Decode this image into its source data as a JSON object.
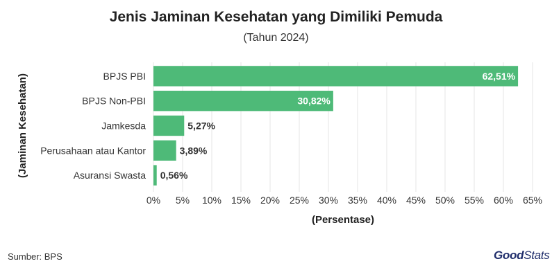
{
  "header": {
    "title": "Jenis Jaminan Kesehatan yang Dimiliki Pemuda",
    "subtitle": "(Tahun 2024)"
  },
  "footer": {
    "source": "Sumber: BPS",
    "logo_good": "Good",
    "logo_stats": "Stats"
  },
  "colors": {
    "bar": "#4eba78",
    "grid": "#e6e6e6",
    "label_inside": "#ffffff",
    "label_outside": "#333333"
  },
  "chart_data": {
    "type": "bar",
    "orientation": "horizontal",
    "title": "Jenis Jaminan Kesehatan yang Dimiliki Pemuda",
    "subtitle": "(Tahun 2024)",
    "xlabel": "(Persentase)",
    "ylabel": "(Jaminan Kesehatan)",
    "categories": [
      "BPJS PBI",
      "BPJS Non-PBI",
      "Jamkesda",
      "Perusahaan atau Kantor",
      "Asuransi Swasta"
    ],
    "values": [
      62.51,
      30.82,
      5.27,
      3.89,
      0.56
    ],
    "value_labels": [
      "62,51%",
      "30,82%",
      "5,27%",
      "3,89%",
      "0,56%"
    ],
    "xlim": [
      0,
      65
    ],
    "x_ticks": [
      "0%",
      "5%",
      "10%",
      "15%",
      "20%",
      "25%",
      "30%",
      "35%",
      "40%",
      "45%",
      "50%",
      "55%",
      "60%",
      "65%"
    ],
    "grid": true,
    "legend": "none"
  }
}
